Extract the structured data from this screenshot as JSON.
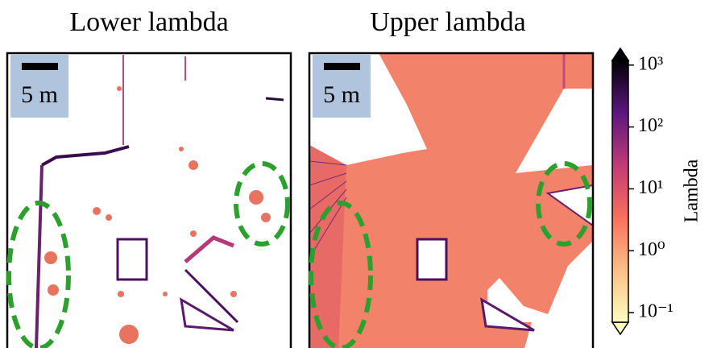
{
  "panels": [
    {
      "title": "Lower lambda",
      "scale_label": "5 m"
    },
    {
      "title": "Upper lambda",
      "scale_label": "5 m"
    }
  ],
  "colorbar": {
    "label": "Lambda",
    "log": true,
    "lim": [
      0.07,
      1190
    ],
    "ticks": [
      {
        "value": 0.1,
        "label": "10⁻¹"
      },
      {
        "value": 1,
        "label": "10⁰"
      },
      {
        "value": 10,
        "label": "10¹"
      },
      {
        "value": 100,
        "label": "10²"
      },
      {
        "value": 1000,
        "label": "10³"
      }
    ]
  }
}
